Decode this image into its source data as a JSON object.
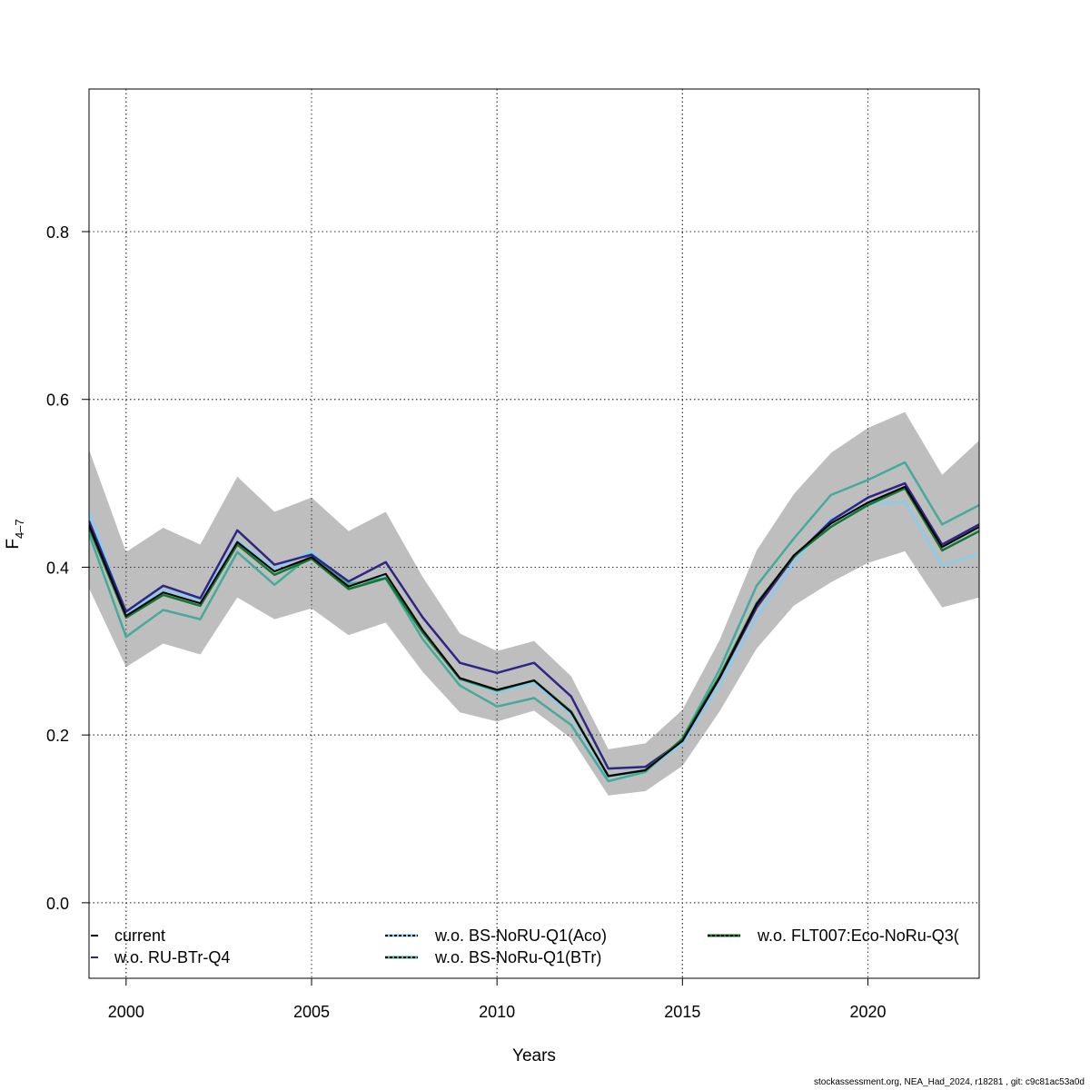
{
  "chart_data": {
    "type": "line",
    "xlabel": "Years",
    "ylabel_main": "F",
    "ylabel_sub": "4–7",
    "xlim": [
      1999,
      2023
    ],
    "ylim": [
      -0.09,
      0.97
    ],
    "x_ticks": [
      2000,
      2005,
      2010,
      2015,
      2020
    ],
    "y_ticks": [
      0.0,
      0.2,
      0.4,
      0.6,
      0.8
    ],
    "y_tick_labels": [
      "0.0",
      "0.2",
      "0.4",
      "0.6",
      "0.8"
    ],
    "grid": true,
    "band_color": "#bebebe",
    "x": [
      1999,
      2000,
      2001,
      2002,
      2003,
      2004,
      2005,
      2006,
      2007,
      2008,
      2009,
      2010,
      2011,
      2012,
      2013,
      2014,
      2015,
      2016,
      2017,
      2018,
      2019,
      2020,
      2021,
      2022,
      2023
    ],
    "band_upper": [
      0.54,
      0.418,
      0.447,
      0.427,
      0.508,
      0.466,
      0.483,
      0.443,
      0.466,
      0.388,
      0.321,
      0.3,
      0.312,
      0.27,
      0.183,
      0.19,
      0.23,
      0.313,
      0.42,
      0.487,
      0.536,
      0.566,
      0.585,
      0.51,
      0.551
    ],
    "band_lower": [
      0.375,
      0.281,
      0.309,
      0.296,
      0.364,
      0.338,
      0.351,
      0.319,
      0.334,
      0.275,
      0.227,
      0.216,
      0.229,
      0.196,
      0.128,
      0.133,
      0.163,
      0.228,
      0.303,
      0.354,
      0.382,
      0.405,
      0.419,
      0.352,
      0.364
    ],
    "series": [
      {
        "name": "current",
        "color": "#000000",
        "dash": "none",
        "width": 2,
        "values": [
          0.45,
          0.342,
          0.37,
          0.357,
          0.43,
          0.395,
          0.412,
          0.377,
          0.392,
          0.325,
          0.268,
          0.254,
          0.265,
          0.227,
          0.151,
          0.158,
          0.193,
          0.268,
          0.356,
          0.414,
          0.452,
          0.477,
          0.496,
          0.424,
          0.448
        ]
      },
      {
        "name": "w.o. RU-BTr-Q4",
        "color": "#2e2585",
        "dash": "none",
        "width": 2.5,
        "values": [
          0.455,
          0.347,
          0.378,
          0.363,
          0.444,
          0.403,
          0.415,
          0.383,
          0.406,
          0.34,
          0.286,
          0.274,
          0.286,
          0.246,
          0.16,
          0.162,
          0.193,
          0.268,
          0.352,
          0.412,
          0.455,
          0.483,
          0.5,
          0.427,
          0.451
        ]
      },
      {
        "name": "w.o. BS-NoRU-Q1(Aco)",
        "color": "#88ccee",
        "dash": "none",
        "width": 2.5,
        "values": [
          0.467,
          0.345,
          0.373,
          0.361,
          0.432,
          0.398,
          0.419,
          0.379,
          0.39,
          0.324,
          0.266,
          0.251,
          0.262,
          0.224,
          0.15,
          0.157,
          0.19,
          0.26,
          0.34,
          0.405,
          0.458,
          0.475,
          0.478,
          0.402,
          0.416
        ]
      },
      {
        "name": "w.o. BS-NoRu-Q1(BTr)",
        "color": "#44aa99",
        "dash": "none",
        "width": 2.5,
        "values": [
          0.44,
          0.317,
          0.349,
          0.338,
          0.418,
          0.379,
          0.415,
          0.38,
          0.387,
          0.314,
          0.259,
          0.234,
          0.244,
          0.212,
          0.145,
          0.156,
          0.196,
          0.278,
          0.378,
          0.434,
          0.486,
          0.504,
          0.525,
          0.451,
          0.474
        ]
      },
      {
        "name": "w.o. FLT007:Eco-NoRu-Q3(",
        "color": "#117733",
        "dash": "none",
        "width": 2.5,
        "values": [
          0.447,
          0.34,
          0.367,
          0.354,
          0.427,
          0.391,
          0.41,
          0.374,
          0.387,
          0.322,
          0.267,
          0.253,
          0.265,
          0.228,
          0.151,
          0.158,
          0.195,
          0.27,
          0.357,
          0.413,
          0.448,
          0.474,
          0.494,
          0.42,
          0.443
        ]
      }
    ],
    "legend": {
      "placement": "bottom",
      "items": [
        {
          "label": "current",
          "color": "#000000",
          "dashed": false
        },
        {
          "label": "w.o. RU-BTr-Q4",
          "color": "#2e2585",
          "dashed": false
        },
        {
          "label": "w.o. BS-NoRU-Q1(Aco)",
          "color": "#000000",
          "dashed": true,
          "under_color": "#88ccee"
        },
        {
          "label": "w.o. BS-NoRu-Q1(BTr)",
          "color": "#000000",
          "dashed": true,
          "under_color": "#44aa99"
        },
        {
          "label": "w.o. FLT007:Eco-NoRu-Q3(",
          "color": "#000000",
          "dashed": true,
          "under_color": "#117733"
        }
      ]
    }
  },
  "footer": "stockassessment.org, NEA_Had_2024, r18281 , git: c9c81ac53a0d"
}
